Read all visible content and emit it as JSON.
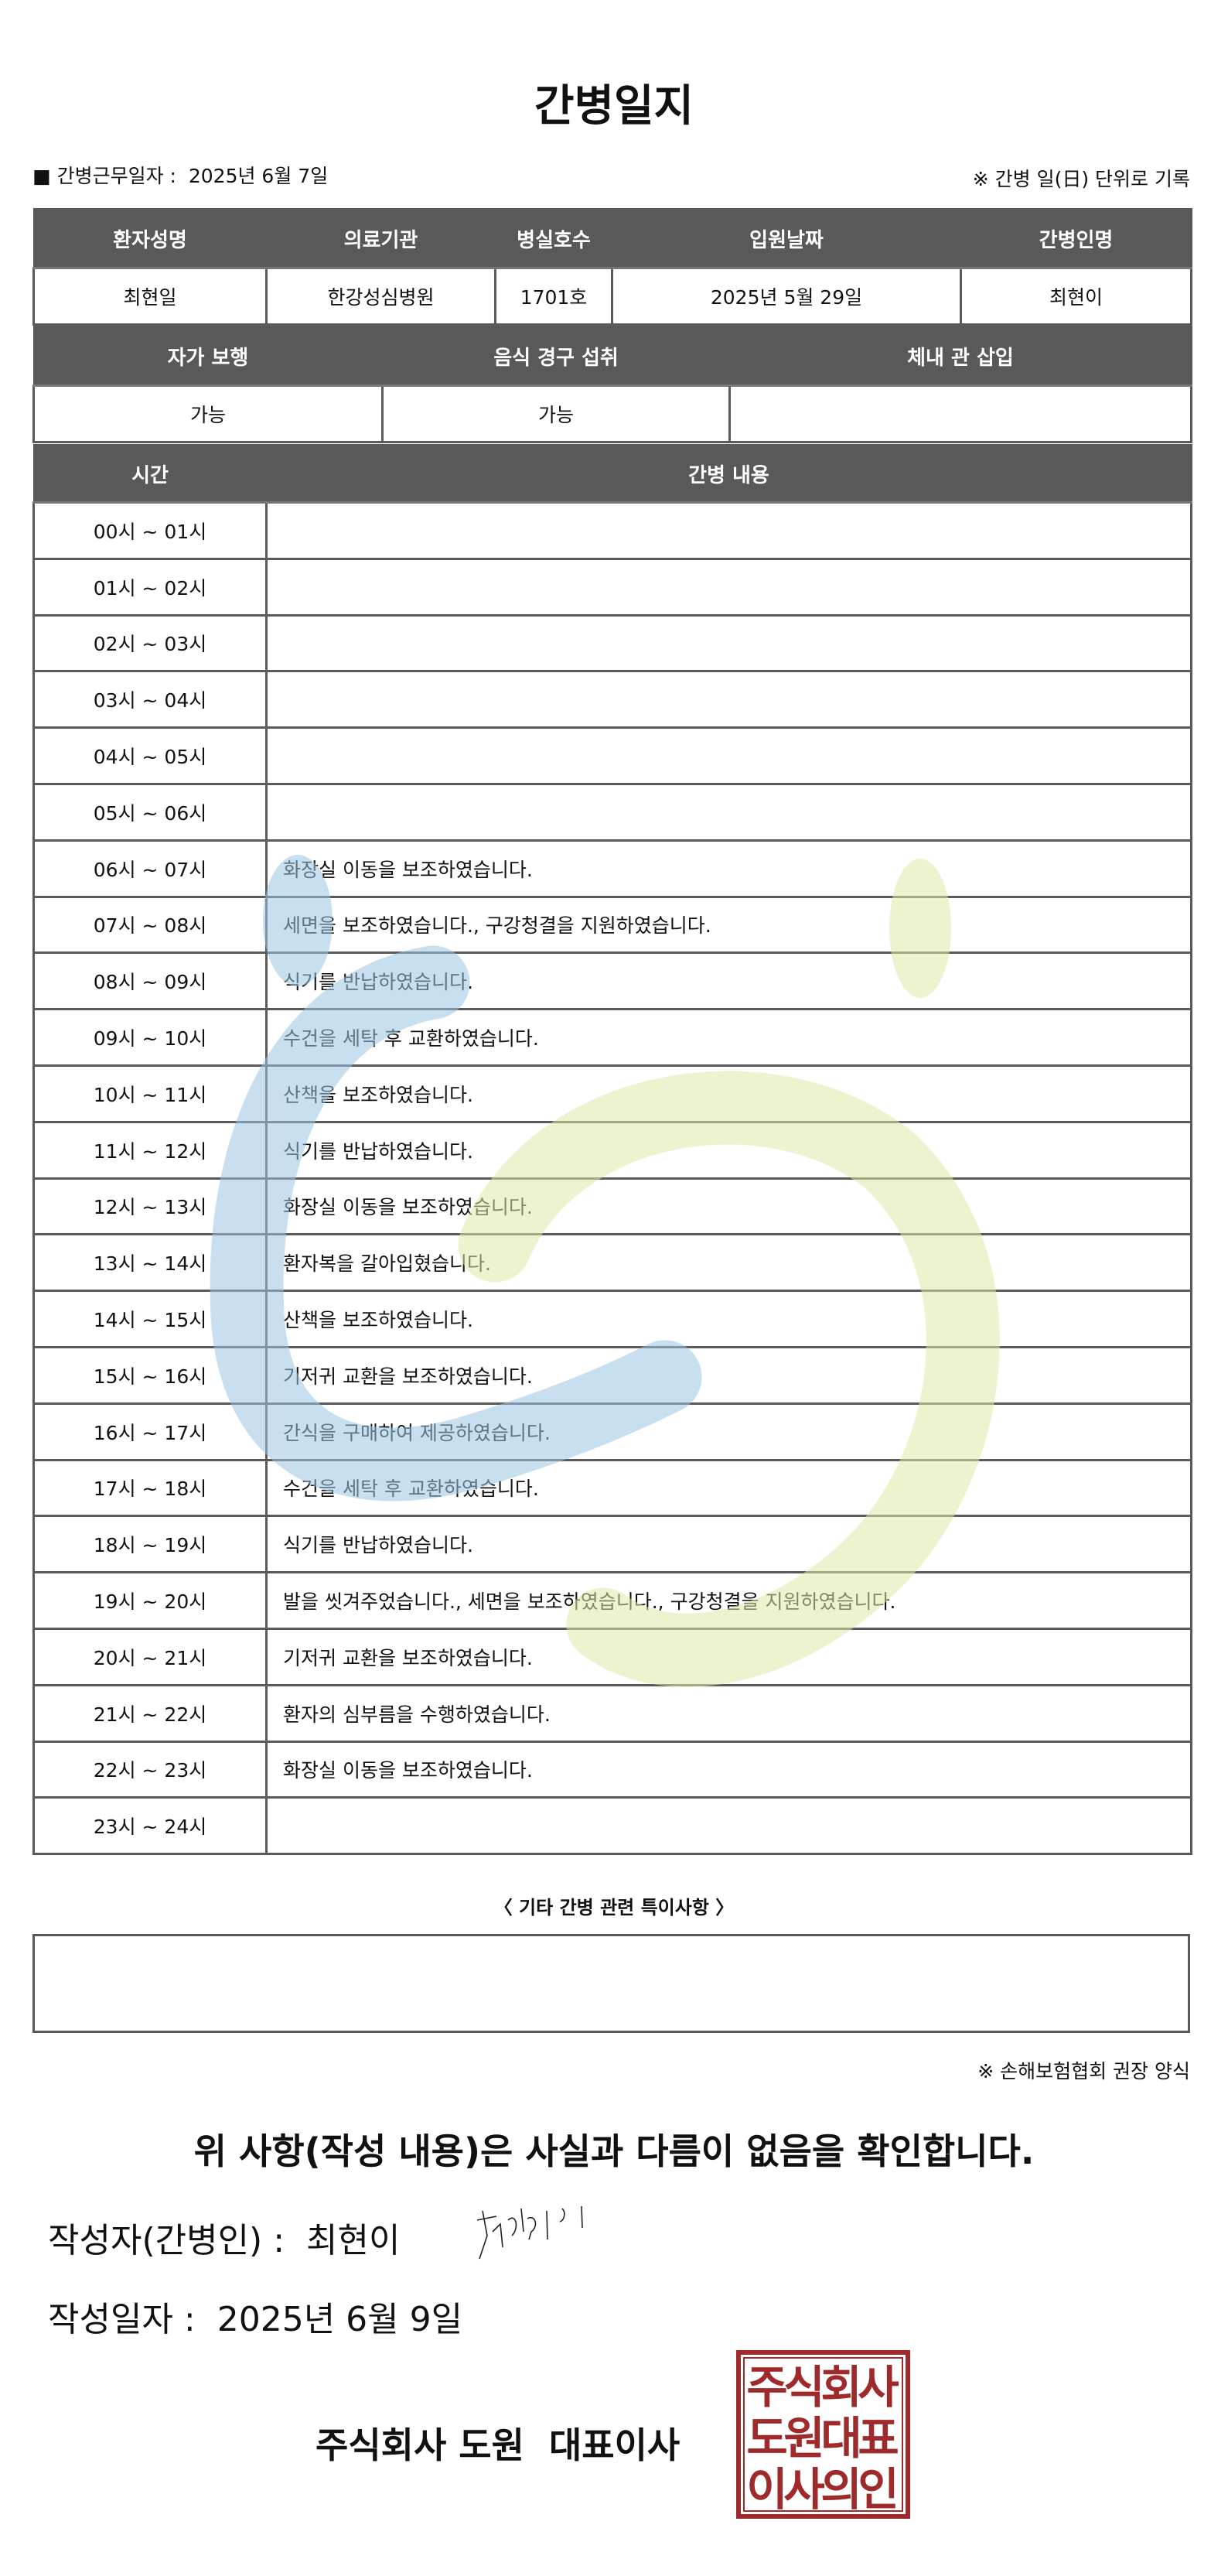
{
  "title": "간병일지",
  "work_date": {
    "label": "■ 간병근무일자 :",
    "value": "2025년 6월 7일"
  },
  "record_note": "※ 간병 일(日) 단위로 기록",
  "patient_table": {
    "headers": [
      "환자성명",
      "의료기관",
      "병실호수",
      "입원날짜",
      "간병인명"
    ],
    "values": [
      "최현일",
      "한강성심병원",
      "1701호",
      "2025년 5월 29일",
      "최현이"
    ]
  },
  "status_table": {
    "headers": [
      "자가 보행",
      "음식 경구 섭취",
      "체내 관 삽입"
    ],
    "values": [
      "가능",
      "가능",
      ""
    ]
  },
  "log_table": {
    "headers": [
      "시간",
      "간병 내용"
    ],
    "rows": [
      {
        "time": "00시 ~ 01시",
        "content": ""
      },
      {
        "time": "01시 ~ 02시",
        "content": ""
      },
      {
        "time": "02시 ~ 03시",
        "content": ""
      },
      {
        "time": "03시 ~ 04시",
        "content": ""
      },
      {
        "time": "04시 ~ 05시",
        "content": ""
      },
      {
        "time": "05시 ~ 06시",
        "content": ""
      },
      {
        "time": "06시 ~ 07시",
        "content": "화장실 이동을 보조하였습니다."
      },
      {
        "time": "07시 ~ 08시",
        "content": "세면을 보조하였습니다., 구강청결을 지원하였습니다."
      },
      {
        "time": "08시 ~ 09시",
        "content": "식기를 반납하였습니다."
      },
      {
        "time": "09시 ~ 10시",
        "content": "수건을 세탁 후 교환하였습니다."
      },
      {
        "time": "10시 ~ 11시",
        "content": "산책을 보조하였습니다."
      },
      {
        "time": "11시 ~ 12시",
        "content": "식기를 반납하였습니다."
      },
      {
        "time": "12시 ~ 13시",
        "content": "화장실 이동을 보조하였습니다."
      },
      {
        "time": "13시 ~ 14시",
        "content": "환자복을 갈아입혔습니다."
      },
      {
        "time": "14시 ~ 15시",
        "content": "산책을 보조하였습니다."
      },
      {
        "time": "15시 ~ 16시",
        "content": "기저귀 교환을 보조하였습니다."
      },
      {
        "time": "16시 ~ 17시",
        "content": "간식을 구매하여 제공하였습니다."
      },
      {
        "time": "17시 ~ 18시",
        "content": "수건을 세탁 후 교환하였습니다."
      },
      {
        "time": "18시 ~ 19시",
        "content": "식기를 반납하였습니다."
      },
      {
        "time": "19시 ~ 20시",
        "content": "발을 씻겨주었습니다., 세면을 보조하였습니다., 구강청결을 지원하였습니다."
      },
      {
        "time": "20시 ~ 21시",
        "content": "기저귀 교환을 보조하였습니다."
      },
      {
        "time": "21시 ~ 22시",
        "content": "환자의 심부름을 수행하였습니다."
      },
      {
        "time": "22시 ~ 23시",
        "content": "화장실 이동을 보조하였습니다."
      },
      {
        "time": "23시 ~ 24시",
        "content": ""
      }
    ]
  },
  "notes": {
    "label": "〈 기타 간병 관련 특이사항 〉",
    "value": ""
  },
  "form_note": "※ 손해보험협회 권장 양식",
  "confirmation": "위 사항(작성 내용)은 사실과 다름이 없음을 확인합니다.",
  "writer": {
    "label": "작성자(간병인) :",
    "name": "최현이"
  },
  "written_date": {
    "label": "작성일자 :",
    "value": "2025년 6월 9일"
  },
  "company": "주식회사 도원  대표이사",
  "seal_text": "주식회사도원대표이사의인",
  "colors": {
    "header_bg": "#595959",
    "seal": "#9e2a2b",
    "watermark_blue": "#9cc5e3",
    "watermark_green": "#dfe9a8"
  }
}
